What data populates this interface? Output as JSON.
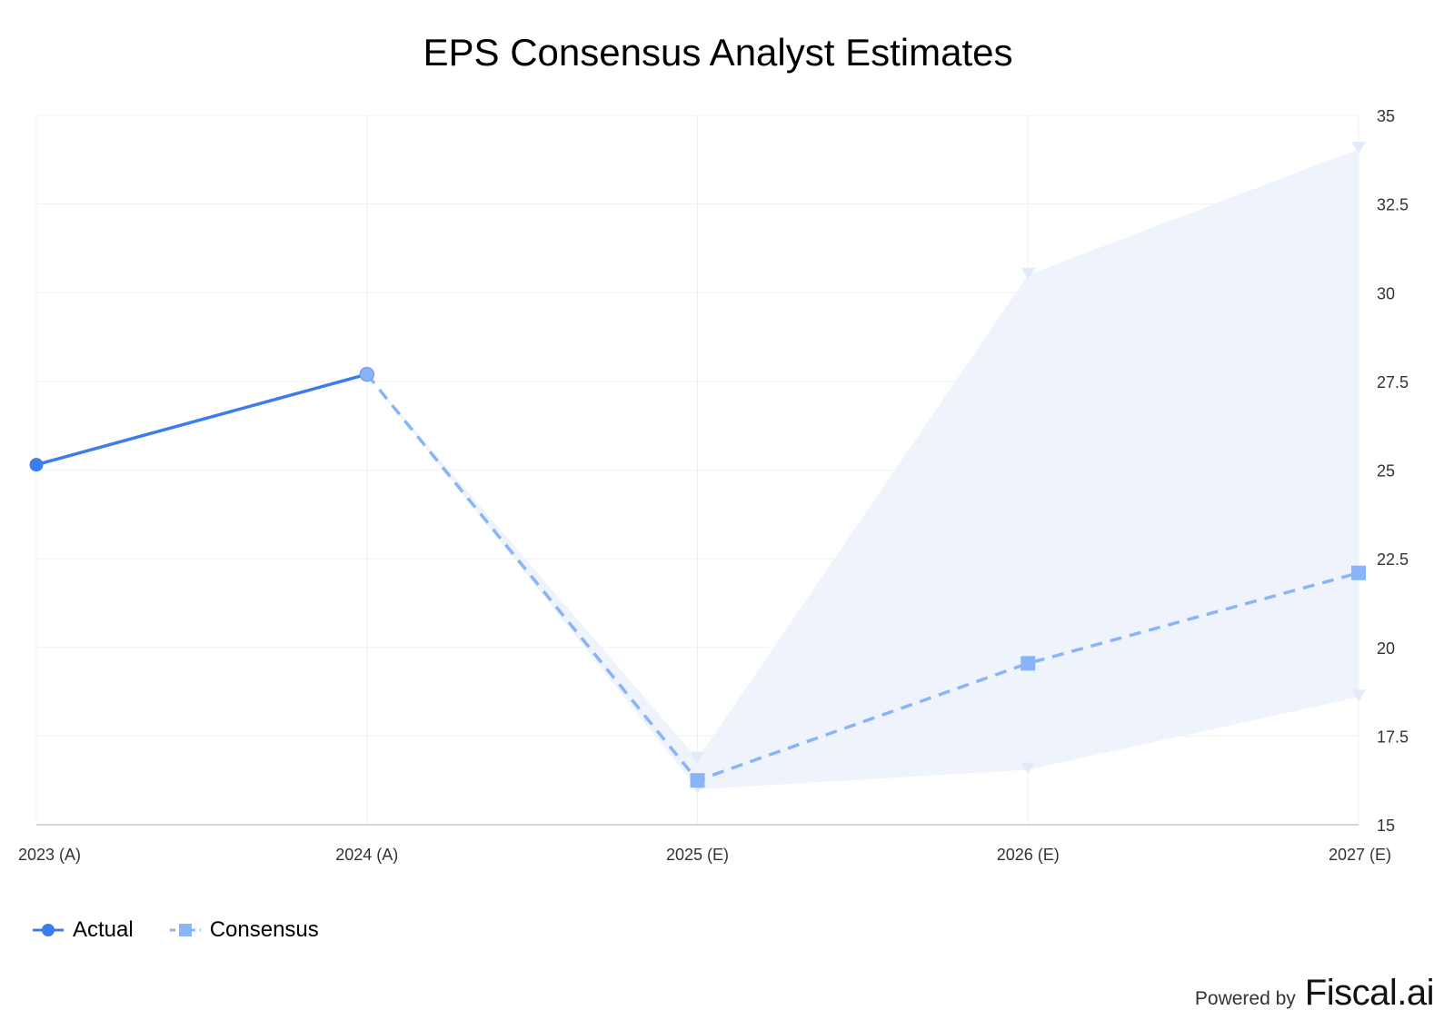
{
  "chart_data": {
    "type": "line",
    "title": "EPS Consensus Analyst Estimates",
    "categories": [
      "2023 (A)",
      "2024 (A)",
      "2025 (E)",
      "2026 (E)",
      "2027 (E)"
    ],
    "yaxis": {
      "position": "right",
      "min": 15,
      "max": 35,
      "ticks": [
        15,
        17.5,
        20,
        22.5,
        25,
        27.5,
        30,
        32.5,
        35
      ]
    },
    "grid": true,
    "legend_position": "bottom-left",
    "series": [
      {
        "name": "Actual",
        "style": "solid",
        "marker": "circle",
        "color": "#3b7ded",
        "values": [
          25.15,
          27.7,
          null,
          null,
          null
        ]
      },
      {
        "name": "Consensus",
        "style": "dashed",
        "marker": "square",
        "color": "#8ab4f8",
        "values": [
          null,
          27.7,
          16.25,
          19.55,
          22.1
        ]
      }
    ],
    "range": {
      "color": "#eef3fc",
      "high": [
        null,
        27.7,
        16.85,
        30.5,
        34.05
      ],
      "low": [
        null,
        27.7,
        16.0,
        16.55,
        18.6
      ]
    }
  },
  "footer": {
    "powered_by": "Powered by",
    "brand": "Fiscal.ai"
  }
}
